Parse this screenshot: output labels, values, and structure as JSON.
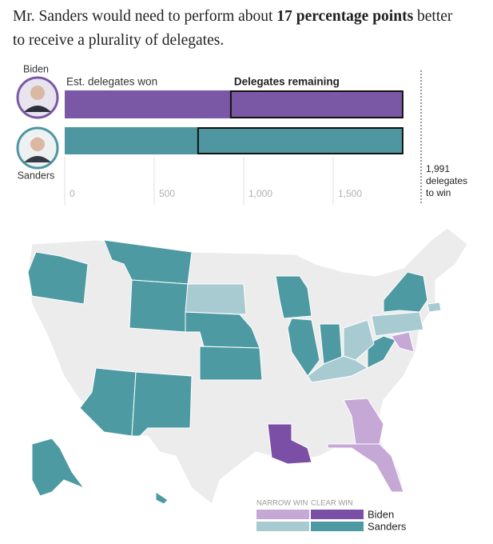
{
  "headline": {
    "parts": [
      "Mr. Sanders would need to perform about ",
      "17 percentage points",
      " better to receive a plurality of delegates."
    ]
  },
  "chart_data": {
    "type": "bar",
    "orientation": "horizontal",
    "categories": [
      "Biden",
      "Sanders"
    ],
    "series": [
      {
        "name": "Est. delegates won",
        "colors": [
          "#7b58a6",
          "#4e97a0"
        ],
        "values": [
          928,
          745
        ]
      },
      {
        "name": "Delegates remaining",
        "outline": "#111111",
        "values": [
          960,
          1143
        ]
      }
    ],
    "xlim": [
      0,
      1991
    ],
    "xticks": [
      0,
      500,
      {
        "value": 1000,
        "label": "1,000"
      },
      {
        "value": 1500,
        "label": "1,500"
      }
    ],
    "grid": true,
    "threshold": {
      "value": 1991,
      "label": [
        "1,991",
        "delegates",
        "to win"
      ]
    }
  },
  "map": {
    "legend": {
      "columns": [
        "NARROW WIN",
        "CLEAR WIN"
      ],
      "rows": [
        {
          "name": "Biden",
          "colors": [
            "#c5a8d6",
            "#7c4fa6"
          ]
        },
        {
          "name": "Sanders",
          "colors": [
            "#a8cbd2",
            "#4e9aa3"
          ]
        }
      ]
    }
  }
}
